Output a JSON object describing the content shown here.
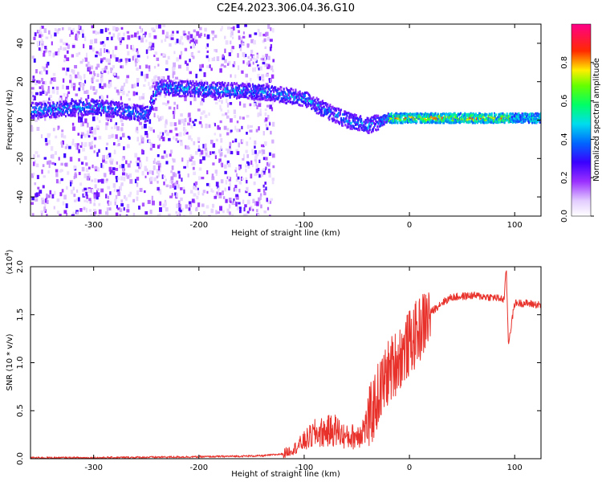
{
  "chart_data": [
    {
      "type": "heatmap",
      "title": "C2E4.2023.306.04.36.G10",
      "xlabel": "Height of straight line (km)",
      "ylabel": "Frequency (Hz)",
      "xlim": [
        -360,
        125
      ],
      "ylim": [
        -50,
        50
      ],
      "x_ticks": [
        -300,
        -200,
        -100,
        0,
        100
      ],
      "y_ticks": [
        -40,
        -20,
        0,
        20,
        40
      ],
      "colorbar": {
        "label": "Normalized spectral amplitude",
        "range": [
          0.0,
          1.0
        ],
        "ticks": [
          "0.0",
          "0.2",
          "0.4",
          "0.6",
          "0.8"
        ],
        "colormap": "rainbow (white, violet, blue, cyan, green, yellow, red, magenta)"
      },
      "ridge": {
        "x": [
          -350,
          -300,
          -250,
          -240,
          -200,
          -150,
          -130,
          -100,
          -80,
          -60,
          -40,
          -20,
          0,
          100,
          125
        ],
        "y": [
          5,
          7,
          3,
          17,
          16,
          15,
          14,
          11,
          5,
          0,
          -3,
          1,
          1,
          1,
          1
        ]
      },
      "noise_region": [
        -360,
        -130
      ]
    },
    {
      "type": "line",
      "xlabel": "Height of straight line (km)",
      "ylabel": "SNR (10 * v/v)",
      "yscale_label": "(x10^4)",
      "xlim": [
        -360,
        125
      ],
      "ylim": [
        0.0,
        2.0
      ],
      "x_ticks": [
        -300,
        -200,
        -100,
        0,
        100
      ],
      "y_ticks": [
        "0.0",
        "0.5",
        "1.0",
        "1.5",
        "2.0"
      ],
      "series": [
        {
          "color": "#e8312a",
          "x": [
            -360,
            -300,
            -200,
            -140,
            -120,
            -110,
            -100,
            -90,
            -80,
            -70,
            -60,
            -50,
            -40,
            -30,
            -20,
            -10,
            0,
            10,
            20,
            30,
            40,
            60,
            80,
            90,
            92,
            94,
            100,
            110,
            125
          ],
          "y": [
            0.01,
            0.01,
            0.02,
            0.03,
            0.05,
            0.1,
            0.18,
            0.26,
            0.28,
            0.3,
            0.22,
            0.24,
            0.35,
            0.65,
            0.9,
            1.05,
            1.2,
            1.35,
            1.52,
            1.62,
            1.68,
            1.7,
            1.68,
            1.66,
            2.0,
            1.2,
            1.62,
            1.62,
            1.6
          ]
        }
      ]
    }
  ]
}
